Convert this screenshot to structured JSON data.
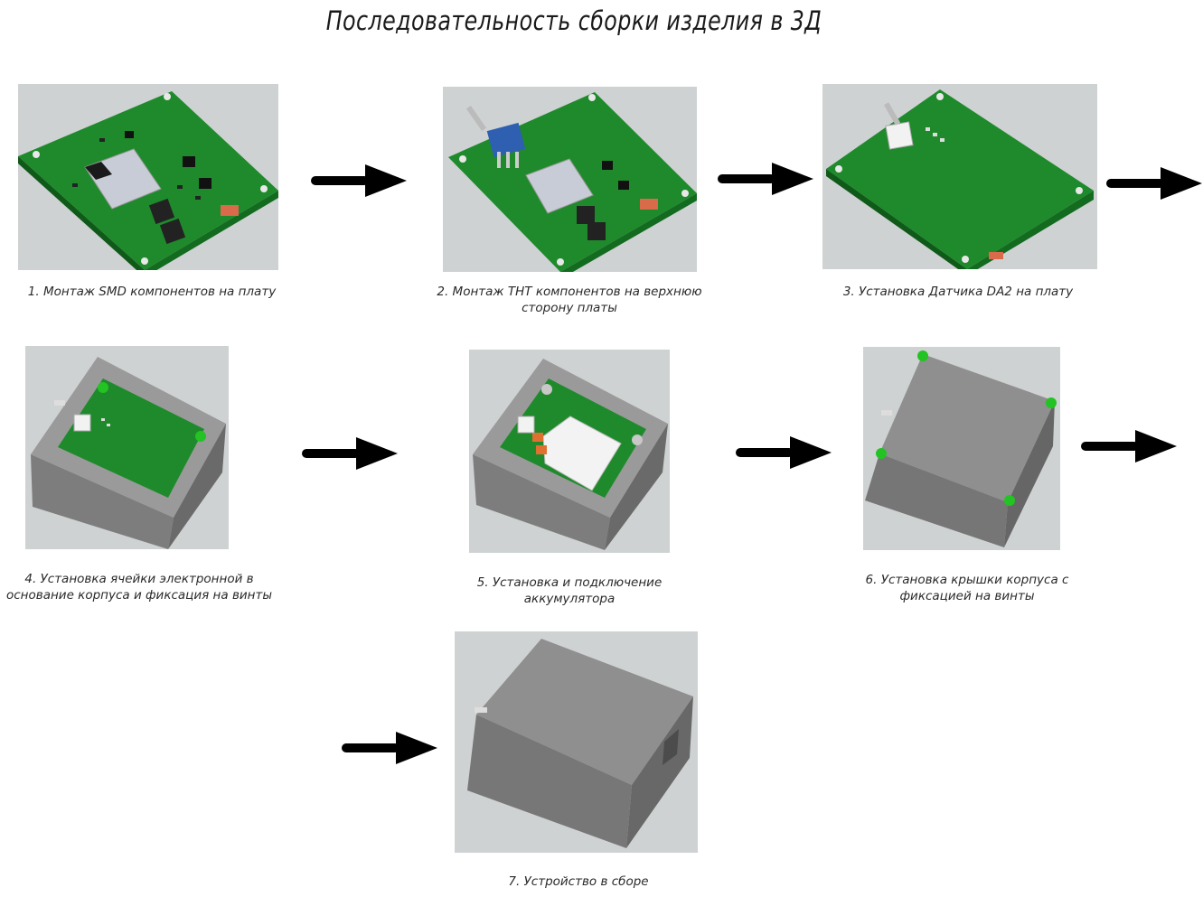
{
  "title": "Последовательность сборки изделия в 3Д",
  "steps": [
    {
      "caption": "1. Монтаж SMD компонентов на плату"
    },
    {
      "caption": "2. Монтаж THT компонентов на верхнюю сторону платы"
    },
    {
      "caption": "3. Установка Датчика DA2 на плату"
    },
    {
      "caption": "4. Установка ячейки электронной в основание корпуса и фиксация на винты"
    },
    {
      "caption": "5. Установка и подключение аккумулятора"
    },
    {
      "caption": "6. Установка крышки корпуса с фиксацией на винты"
    },
    {
      "caption": "7. Устройство в сборе"
    }
  ],
  "colors": {
    "pcb": "#1f8a2c",
    "pcb_edge": "#0f5a18",
    "enclosure": "#8a8a8a",
    "screw": "#22c322",
    "background": "#cfd2d3",
    "arrow": "#000000"
  },
  "icons": {
    "arrow": "right-arrow-icon"
  }
}
